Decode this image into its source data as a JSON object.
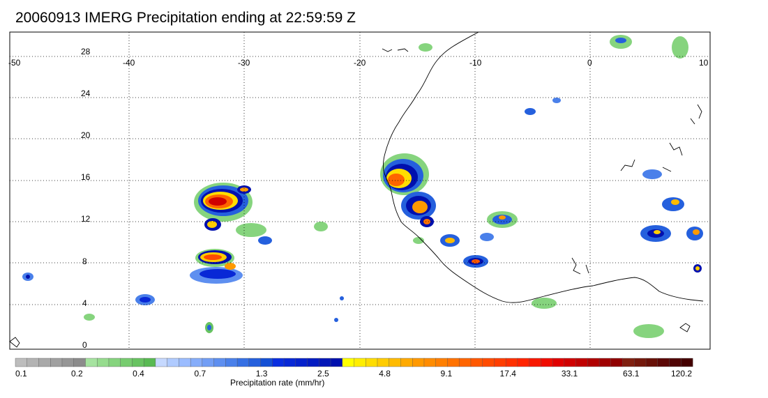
{
  "title": "20060913 IMERG Precipitation ending at 22:59:59 Z",
  "map": {
    "lon_labels": [
      "-50",
      "-40",
      "-30",
      "-20",
      "-10",
      "0",
      "10"
    ],
    "lat_labels": [
      "28",
      "24",
      "20",
      "16",
      "12",
      "8",
      "4",
      "0"
    ]
  },
  "colorbar": {
    "title": "Precipitation rate (mm/hr)",
    "tick_labels": [
      "0.1",
      "0.2",
      "0.4",
      "0.7",
      "1.3",
      "2.5",
      "4.8",
      "9.1",
      "17.4",
      "33.1",
      "63.1",
      "120.2"
    ],
    "colors": [
      "#bdbdbd",
      "#b3b3b3",
      "#a9a9a9",
      "#a0a0a0",
      "#969696",
      "#8c8c8c",
      "#a6e3a0",
      "#96dc8e",
      "#86d47e",
      "#77cc6f",
      "#68c361",
      "#59ba53",
      "#c6d9ff",
      "#b0cbff",
      "#9bbcff",
      "#86adfa",
      "#729ef5",
      "#5e8ff0",
      "#4a80ea",
      "#3670e4",
      "#2560dd",
      "#1450d5",
      "#0a2ee0",
      "#0828d6",
      "#0622cc",
      "#041cc2",
      "#0216b8",
      "#0010ae",
      "#ffff00",
      "#ffee00",
      "#ffdd00",
      "#ffcc00",
      "#ffbb00",
      "#ffaa00",
      "#ff9900",
      "#ff8c00",
      "#ff7f00",
      "#ff7200",
      "#ff6500",
      "#ff5800",
      "#ff4b00",
      "#ff3e00",
      "#ff3100",
      "#ff2400",
      "#f81800",
      "#f00c00",
      "#e00000",
      "#d00000",
      "#c00000",
      "#b00000",
      "#a00000",
      "#900000",
      "#802010",
      "#74180c",
      "#681008",
      "#5c0806",
      "#500404",
      "#440000"
    ]
  }
}
